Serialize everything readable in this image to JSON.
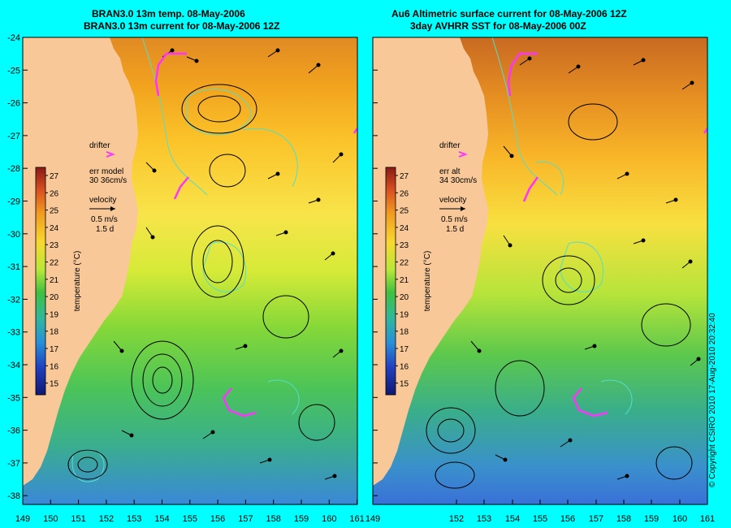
{
  "left_panel": {
    "title_line1": "BRAN3.0 13m temp. 08-May-2006",
    "title_line2": "BRAN3.0 13m current for 08-May-2006 12Z",
    "legend": {
      "drifter_label": "drifter",
      "err_label": "err model",
      "err_value": "30 36cm/s",
      "velocity_label": "velocity",
      "velocity_scale": "0.5 m/s",
      "velocity_days": "1.5 d"
    }
  },
  "right_panel": {
    "title_line1": "Au6 Altimetric surface current for 08-May-2006 12Z",
    "title_line2": "3day AVHRR SST for 08-May-2006 00Z",
    "legend": {
      "drifter_label": "drifter",
      "err_label": "err alt",
      "err_value": "34 30cm/s",
      "velocity_label": "velocity",
      "velocity_scale": "0.5 m/s",
      "velocity_days": "1.5 d"
    }
  },
  "colorbar": {
    "label": "temperature (°C)",
    "ticks": [
      "27",
      "26",
      "25",
      "24",
      "23",
      "22",
      "21",
      "20",
      "19",
      "18",
      "17",
      "16",
      "15"
    ]
  },
  "axes": {
    "lat_ticks": [
      "-24",
      "-25",
      "-26",
      "-27",
      "-28",
      "-29",
      "-30",
      "-31",
      "-32",
      "-33",
      "-34",
      "-35",
      "-36",
      "-37",
      "-38"
    ],
    "left_lon_ticks": [
      "149",
      "150",
      "151",
      "152",
      "153",
      "154",
      "155",
      "156",
      "157",
      "158",
      "159",
      "160",
      "161"
    ],
    "right_lon_ticks": [
      "149",
      "152",
      "153",
      "154",
      "155",
      "156",
      "157",
      "158",
      "159",
      "160",
      "161"
    ]
  },
  "copyright": "© Copyright CSIRO 2010  17-Aug-2010 20:32:40",
  "colors": {
    "background": "#00ffff",
    "land": "#f8c898",
    "drifter": "#ff33ff",
    "contour": "#55ddcc"
  }
}
